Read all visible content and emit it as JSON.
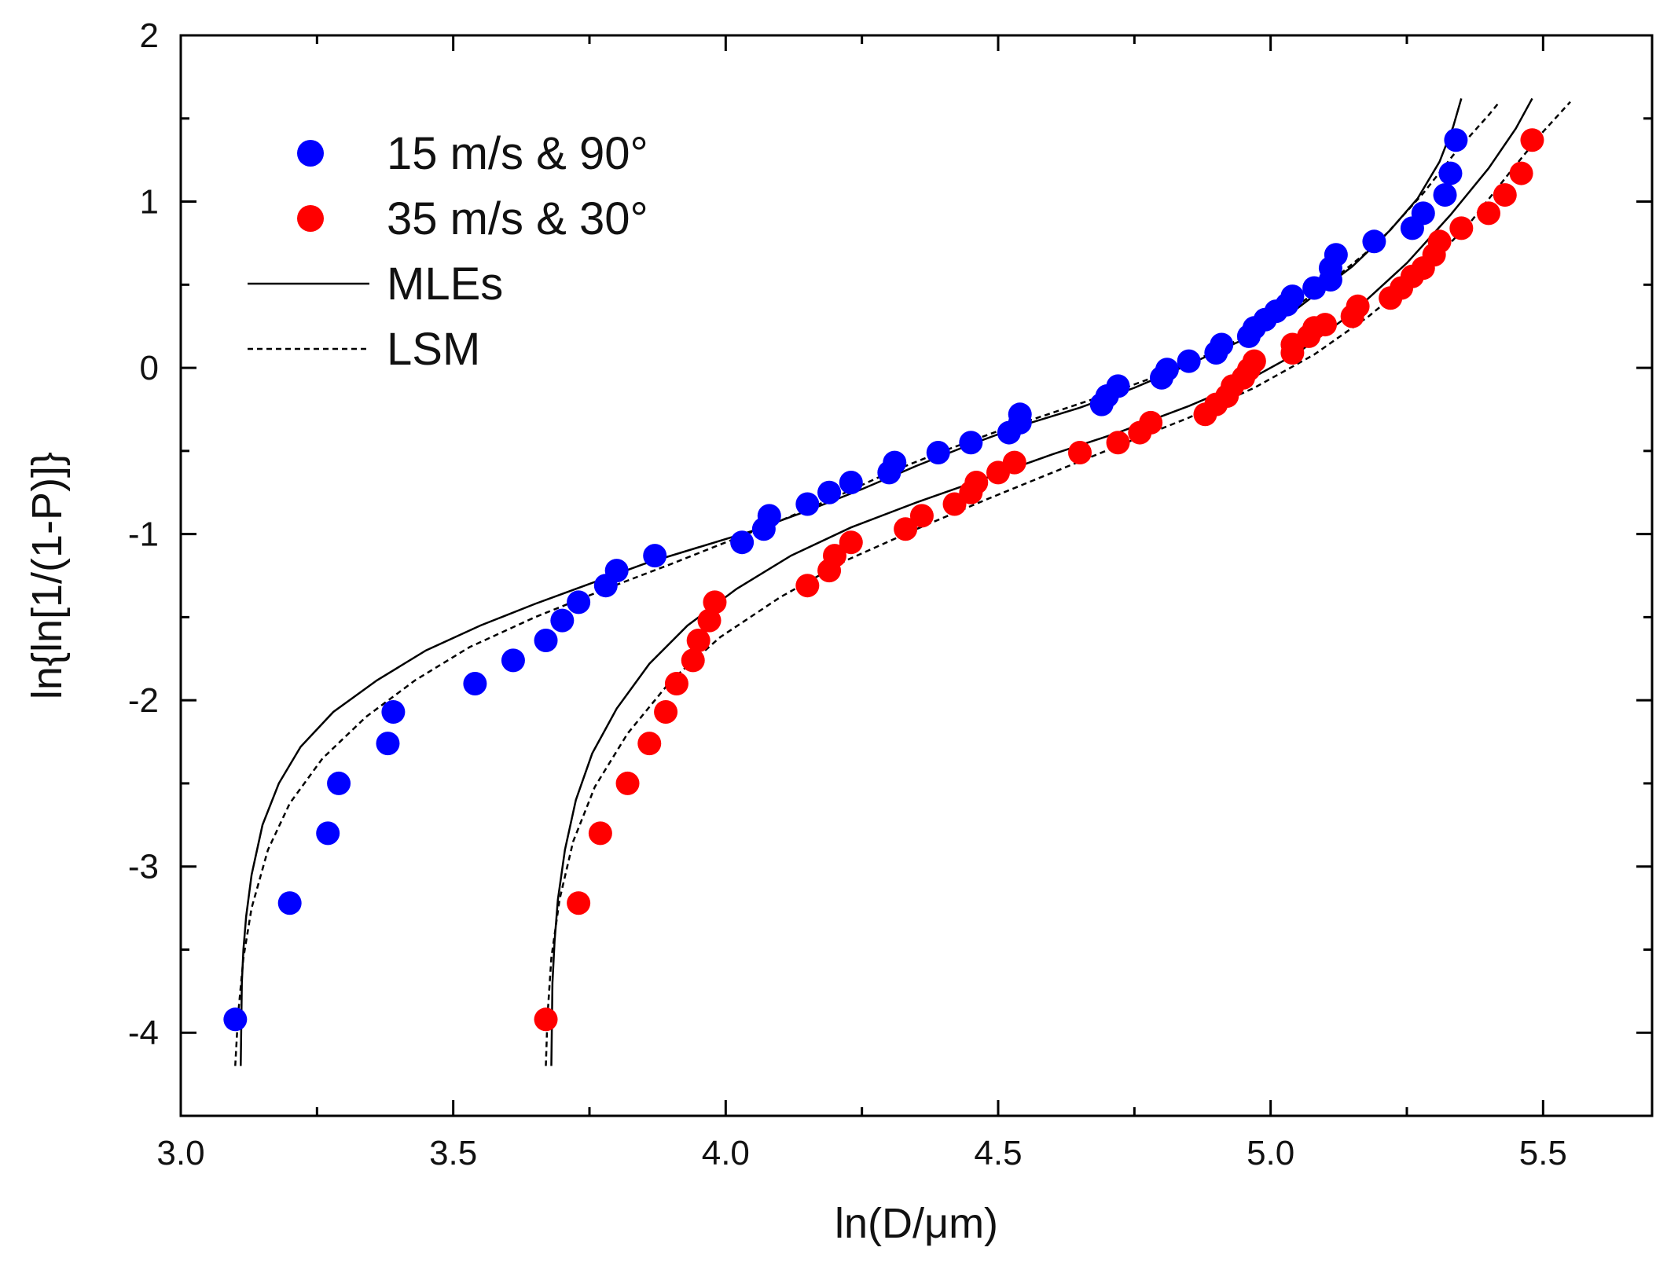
{
  "chart_data": {
    "type": "scatter",
    "title": "",
    "xlabel": "ln(D/μm)",
    "ylabel": "ln{ln[1/(1-P)]}",
    "xlim": [
      3.0,
      5.7
    ],
    "ylim": [
      -4.5,
      2.0
    ],
    "x_ticks": [
      3.0,
      3.5,
      4.0,
      4.5,
      5.0,
      5.5
    ],
    "x_tick_labels": [
      "3.0",
      "3.5",
      "4.0",
      "4.5",
      "5.0",
      "5.5"
    ],
    "y_ticks": [
      -4,
      -3,
      -2,
      -1,
      0,
      1,
      2
    ],
    "y_tick_labels": [
      "-4",
      "-3",
      "-2",
      "-1",
      "0",
      "1",
      "2"
    ],
    "grid": false,
    "legend_position": "top-left",
    "legend": [
      {
        "label": "15 m/s & 90°",
        "kind": "marker",
        "color": "#0000ff"
      },
      {
        "label": "35 m/s & 30°",
        "kind": "marker",
        "color": "#ff0000"
      },
      {
        "label": "MLEs",
        "kind": "solid-line",
        "color": "#000000"
      },
      {
        "label": "LSM",
        "kind": "dashed-line",
        "color": "#000000"
      }
    ],
    "series": [
      {
        "name": "15 m/s & 90°",
        "type": "scatter",
        "color": "#0000ff",
        "points": [
          [
            3.1,
            -3.92
          ],
          [
            3.2,
            -3.22
          ],
          [
            3.27,
            -2.8
          ],
          [
            3.29,
            -2.5
          ],
          [
            3.38,
            -2.26
          ],
          [
            3.39,
            -2.07
          ],
          [
            3.54,
            -1.9
          ],
          [
            3.61,
            -1.76
          ],
          [
            3.67,
            -1.64
          ],
          [
            3.7,
            -1.52
          ],
          [
            3.73,
            -1.41
          ],
          [
            3.78,
            -1.31
          ],
          [
            3.8,
            -1.22
          ],
          [
            3.87,
            -1.13
          ],
          [
            4.03,
            -1.05
          ],
          [
            4.07,
            -0.97
          ],
          [
            4.08,
            -0.89
          ],
          [
            4.15,
            -0.82
          ],
          [
            4.19,
            -0.75
          ],
          [
            4.23,
            -0.69
          ],
          [
            4.3,
            -0.63
          ],
          [
            4.31,
            -0.57
          ],
          [
            4.39,
            -0.51
          ],
          [
            4.45,
            -0.45
          ],
          [
            4.52,
            -0.39
          ],
          [
            4.54,
            -0.33
          ],
          [
            4.54,
            -0.28
          ],
          [
            4.69,
            -0.22
          ],
          [
            4.7,
            -0.17
          ],
          [
            4.72,
            -0.11
          ],
          [
            4.8,
            -0.06
          ],
          [
            4.81,
            -0.01
          ],
          [
            4.85,
            0.04
          ],
          [
            4.9,
            0.09
          ],
          [
            4.91,
            0.14
          ],
          [
            4.96,
            0.19
          ],
          [
            4.97,
            0.24
          ],
          [
            4.99,
            0.29
          ],
          [
            5.01,
            0.34
          ],
          [
            5.03,
            0.38
          ],
          [
            5.04,
            0.43
          ],
          [
            5.08,
            0.48
          ],
          [
            5.11,
            0.53
          ],
          [
            5.11,
            0.6
          ],
          [
            5.12,
            0.68
          ],
          [
            5.19,
            0.76
          ],
          [
            5.26,
            0.84
          ],
          [
            5.28,
            0.93
          ],
          [
            5.32,
            1.04
          ],
          [
            5.33,
            1.17
          ],
          [
            5.34,
            1.37
          ]
        ]
      },
      {
        "name": "35 m/s & 30°",
        "type": "scatter",
        "color": "#ff0000",
        "points": [
          [
            3.67,
            -3.92
          ],
          [
            3.73,
            -3.22
          ],
          [
            3.77,
            -2.8
          ],
          [
            3.82,
            -2.5
          ],
          [
            3.86,
            -2.26
          ],
          [
            3.89,
            -2.07
          ],
          [
            3.91,
            -1.9
          ],
          [
            3.94,
            -1.76
          ],
          [
            3.95,
            -1.64
          ],
          [
            3.97,
            -1.52
          ],
          [
            3.98,
            -1.41
          ],
          [
            4.15,
            -1.31
          ],
          [
            4.19,
            -1.22
          ],
          [
            4.2,
            -1.13
          ],
          [
            4.23,
            -1.05
          ],
          [
            4.33,
            -0.97
          ],
          [
            4.36,
            -0.89
          ],
          [
            4.42,
            -0.82
          ],
          [
            4.45,
            -0.75
          ],
          [
            4.46,
            -0.69
          ],
          [
            4.5,
            -0.63
          ],
          [
            4.53,
            -0.57
          ],
          [
            4.65,
            -0.51
          ],
          [
            4.72,
            -0.45
          ],
          [
            4.76,
            -0.39
          ],
          [
            4.78,
            -0.33
          ],
          [
            4.88,
            -0.28
          ],
          [
            4.9,
            -0.22
          ],
          [
            4.92,
            -0.17
          ],
          [
            4.93,
            -0.11
          ],
          [
            4.95,
            -0.06
          ],
          [
            4.96,
            -0.01
          ],
          [
            4.97,
            0.04
          ],
          [
            5.04,
            0.09
          ],
          [
            5.04,
            0.14
          ],
          [
            5.07,
            0.19
          ],
          [
            5.08,
            0.24
          ],
          [
            5.1,
            0.26
          ],
          [
            5.15,
            0.31
          ],
          [
            5.16,
            0.37
          ],
          [
            5.22,
            0.42
          ],
          [
            5.24,
            0.48
          ],
          [
            5.26,
            0.55
          ],
          [
            5.28,
            0.6
          ],
          [
            5.3,
            0.68
          ],
          [
            5.31,
            0.76
          ],
          [
            5.35,
            0.84
          ],
          [
            5.4,
            0.93
          ],
          [
            5.43,
            1.04
          ],
          [
            5.46,
            1.17
          ],
          [
            5.48,
            1.37
          ]
        ]
      },
      {
        "name": "MLEs (15 m/s & 90°)",
        "type": "line",
        "style": "solid",
        "color": "#000000",
        "points": [
          [
            3.11,
            -4.2
          ],
          [
            3.112,
            -3.7
          ],
          [
            3.115,
            -3.5
          ],
          [
            3.12,
            -3.3
          ],
          [
            3.13,
            -3.05
          ],
          [
            3.15,
            -2.75
          ],
          [
            3.18,
            -2.5
          ],
          [
            3.22,
            -2.28
          ],
          [
            3.28,
            -2.07
          ],
          [
            3.36,
            -1.88
          ],
          [
            3.45,
            -1.7
          ],
          [
            3.55,
            -1.55
          ],
          [
            3.65,
            -1.42
          ],
          [
            3.75,
            -1.3
          ],
          [
            3.85,
            -1.18
          ],
          [
            3.95,
            -1.08
          ],
          [
            4.05,
            -0.98
          ],
          [
            4.15,
            -0.86
          ],
          [
            4.25,
            -0.73
          ],
          [
            4.35,
            -0.59
          ],
          [
            4.45,
            -0.46
          ],
          [
            4.55,
            -0.34
          ],
          [
            4.65,
            -0.24
          ],
          [
            4.75,
            -0.12
          ],
          [
            4.85,
            0.02
          ],
          [
            4.95,
            0.17
          ],
          [
            5.05,
            0.36
          ],
          [
            5.15,
            0.61
          ],
          [
            5.22,
            0.83
          ],
          [
            5.27,
            1.02
          ],
          [
            5.31,
            1.24
          ],
          [
            5.335,
            1.45
          ],
          [
            5.35,
            1.62
          ]
        ]
      },
      {
        "name": "LSM (15 m/s & 90°)",
        "type": "line",
        "style": "dashed",
        "color": "#000000",
        "points": [
          [
            3.1,
            -4.2
          ],
          [
            3.105,
            -3.9
          ],
          [
            3.115,
            -3.55
          ],
          [
            3.13,
            -3.25
          ],
          [
            3.16,
            -2.9
          ],
          [
            3.2,
            -2.62
          ],
          [
            3.26,
            -2.35
          ],
          [
            3.34,
            -2.1
          ],
          [
            3.43,
            -1.88
          ],
          [
            3.53,
            -1.68
          ],
          [
            3.65,
            -1.5
          ],
          [
            3.78,
            -1.33
          ],
          [
            3.9,
            -1.18
          ],
          [
            4.0,
            -1.05
          ],
          [
            4.1,
            -0.92
          ],
          [
            4.2,
            -0.78
          ],
          [
            4.3,
            -0.63
          ],
          [
            4.4,
            -0.5
          ],
          [
            4.5,
            -0.38
          ],
          [
            4.6,
            -0.27
          ],
          [
            4.7,
            -0.16
          ],
          [
            4.8,
            -0.04
          ],
          [
            4.9,
            0.1
          ],
          [
            5.0,
            0.27
          ],
          [
            5.1,
            0.49
          ],
          [
            5.2,
            0.76
          ],
          [
            5.28,
            1.05
          ],
          [
            5.34,
            1.3
          ],
          [
            5.4,
            1.52
          ],
          [
            5.42,
            1.6
          ]
        ]
      },
      {
        "name": "MLEs (35 m/s & 30°)",
        "type": "line",
        "style": "solid",
        "color": "#000000",
        "points": [
          [
            3.68,
            -4.2
          ],
          [
            3.682,
            -3.7
          ],
          [
            3.686,
            -3.45
          ],
          [
            3.692,
            -3.2
          ],
          [
            3.705,
            -2.9
          ],
          [
            3.725,
            -2.6
          ],
          [
            3.755,
            -2.32
          ],
          [
            3.8,
            -2.05
          ],
          [
            3.86,
            -1.78
          ],
          [
            3.93,
            -1.55
          ],
          [
            4.02,
            -1.33
          ],
          [
            4.12,
            -1.13
          ],
          [
            4.23,
            -0.96
          ],
          [
            4.35,
            -0.81
          ],
          [
            4.48,
            -0.66
          ],
          [
            4.6,
            -0.52
          ],
          [
            4.72,
            -0.39
          ],
          [
            4.85,
            -0.23
          ],
          [
            4.95,
            -0.09
          ],
          [
            5.05,
            0.09
          ],
          [
            5.15,
            0.33
          ],
          [
            5.25,
            0.63
          ],
          [
            5.33,
            0.92
          ],
          [
            5.4,
            1.2
          ],
          [
            5.45,
            1.44
          ],
          [
            5.48,
            1.62
          ]
        ]
      },
      {
        "name": "LSM (35 m/s & 30°)",
        "type": "line",
        "style": "dashed",
        "color": "#000000",
        "points": [
          [
            3.67,
            -4.2
          ],
          [
            3.673,
            -3.9
          ],
          [
            3.68,
            -3.55
          ],
          [
            3.695,
            -3.2
          ],
          [
            3.72,
            -2.85
          ],
          [
            3.76,
            -2.52
          ],
          [
            3.82,
            -2.2
          ],
          [
            3.9,
            -1.88
          ],
          [
            3.99,
            -1.62
          ],
          [
            4.1,
            -1.38
          ],
          [
            4.22,
            -1.16
          ],
          [
            4.35,
            -0.97
          ],
          [
            4.48,
            -0.79
          ],
          [
            4.6,
            -0.63
          ],
          [
            4.72,
            -0.47
          ],
          [
            4.85,
            -0.3
          ],
          [
            4.97,
            -0.12
          ],
          [
            5.08,
            0.08
          ],
          [
            5.18,
            0.31
          ],
          [
            5.28,
            0.58
          ],
          [
            5.37,
            0.89
          ],
          [
            5.44,
            1.18
          ],
          [
            5.5,
            1.42
          ],
          [
            5.55,
            1.6
          ]
        ]
      }
    ]
  }
}
